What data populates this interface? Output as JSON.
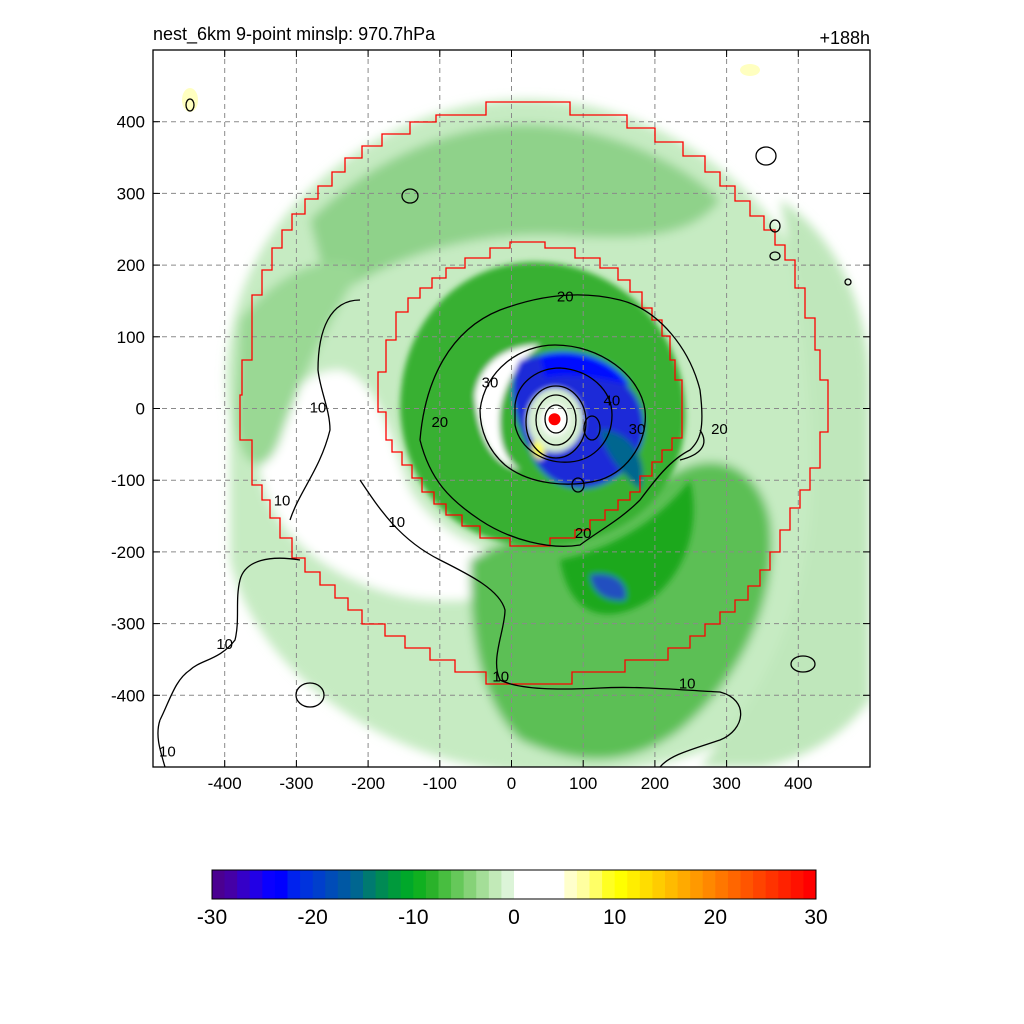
{
  "title": "nest_6km  9-point minslp: 970.7hPa",
  "forecast_hour": "+188h",
  "chart_data": {
    "type": "heatmap",
    "xlim": [
      -500,
      500
    ],
    "ylim": [
      -500,
      500
    ],
    "x_ticks": [
      -400,
      -300,
      -200,
      -100,
      0,
      100,
      200,
      300,
      400
    ],
    "y_ticks": [
      400,
      300,
      200,
      100,
      0,
      -100,
      -200,
      -300,
      -400
    ],
    "x_tick_labels": [
      "-400",
      "-300",
      "-200",
      "-100",
      "0",
      "100",
      "200",
      "300",
      "400"
    ],
    "y_tick_labels": [
      "400",
      "300",
      "200",
      "100",
      "0",
      "-100",
      "-200",
      "-300",
      "-400"
    ],
    "grid": true,
    "colorbar": {
      "range": [
        -30,
        30
      ],
      "tick_values": [
        -30,
        -20,
        -10,
        0,
        10,
        20,
        30
      ],
      "tick_labels": [
        "-30",
        "-20",
        "-10",
        "0",
        "10",
        "20",
        "30"
      ],
      "colors": [
        "#4b0091",
        "#4500a6",
        "#3500c8",
        "#2200e6",
        "#0a00ff",
        "#0000ff",
        "#0022ee",
        "#0033dd",
        "#003fcc",
        "#004cb8",
        "#0058a4",
        "#006690",
        "#007a70",
        "#008a54",
        "#009a3c",
        "#00a82a",
        "#10b020",
        "#2ab22a",
        "#48be40",
        "#66c85a",
        "#86d278",
        "#a4de98",
        "#c2eab8",
        "#dcf4d8",
        "#ffffff",
        "#ffffff",
        "#ffffff",
        "#ffffff",
        "#ffffcc",
        "#ffffa0",
        "#ffff66",
        "#ffff22",
        "#ffff00",
        "#ffee00",
        "#ffdd00",
        "#ffcc00",
        "#ffbb00",
        "#ffaa00",
        "#ff9900",
        "#ff8800",
        "#ff7700",
        "#ff6600",
        "#ff5500",
        "#ff4400",
        "#ff3300",
        "#ff2200",
        "#ff1100",
        "#ff0000"
      ]
    },
    "contour_labels": [
      {
        "text": "20",
        "x": 75,
        "y": 155
      },
      {
        "text": "30",
        "x": -30,
        "y": 35
      },
      {
        "text": "40",
        "x": 140,
        "y": 10
      },
      {
        "text": "30",
        "x": 175,
        "y": -30
      },
      {
        "text": "20",
        "x": -100,
        "y": -20
      },
      {
        "text": "20",
        "x": 290,
        "y": -30
      },
      {
        "text": "10",
        "x": -270,
        "y": 0
      },
      {
        "text": "10",
        "x": -320,
        "y": -130
      },
      {
        "text": "10",
        "x": -160,
        "y": -160
      },
      {
        "text": "20",
        "x": 100,
        "y": -175
      },
      {
        "text": "10",
        "x": -400,
        "y": -330
      },
      {
        "text": "10",
        "x": -15,
        "y": -375
      },
      {
        "text": "10",
        "x": 245,
        "y": -385
      },
      {
        "text": "10",
        "x": -480,
        "y": -480
      }
    ],
    "storm_center": {
      "x": 60,
      "y": -15
    }
  }
}
